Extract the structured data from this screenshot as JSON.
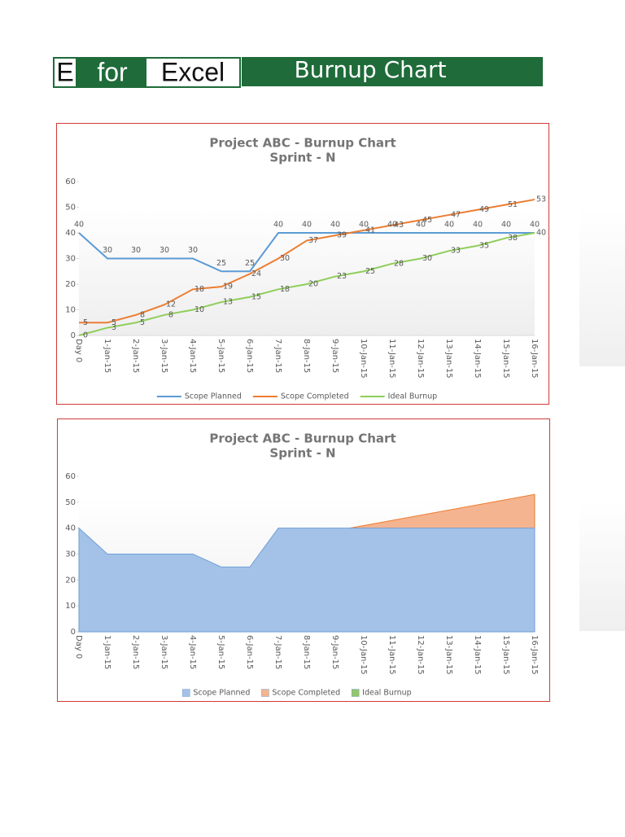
{
  "header": {
    "logo": [
      "E",
      "for",
      "Excel"
    ],
    "title": "Burnup Chart"
  },
  "chart_data": [
    {
      "type": "line",
      "title": "Project ABC - Burnup Chart",
      "subtitle": "Sprint - N",
      "categories": [
        "Day 0",
        "1-Jan-15",
        "2-Jan-15",
        "3-Jan-15",
        "4-Jan-15",
        "5-Jan-15",
        "6-Jan-15",
        "7-Jan-15",
        "8-Jan-15",
        "9-Jan-15",
        "10-Jan-15",
        "11-Jan-15",
        "12-Jan-15",
        "13-Jan-15",
        "14-Jan-15",
        "15-Jan-15",
        "16-Jan-15"
      ],
      "series": [
        {
          "name": "Scope Planned",
          "color": "#5b9bd5",
          "values": [
            40,
            30,
            30,
            30,
            30,
            25,
            25,
            40,
            40,
            40,
            40,
            40,
            40,
            40,
            40,
            40,
            40
          ]
        },
        {
          "name": "Scope Completed",
          "color": "#ed7d31",
          "values": [
            5,
            5,
            8,
            12,
            18,
            19,
            24,
            30,
            37,
            39,
            41,
            43,
            45,
            47,
            49,
            51,
            53
          ]
        },
        {
          "name": "Ideal Burnup",
          "color": "#8fce5a",
          "values": [
            0,
            3,
            5,
            8,
            10,
            13,
            15,
            18,
            20,
            23,
            25,
            28,
            30,
            33,
            35,
            38,
            40
          ]
        }
      ],
      "ylim": [
        0,
        60
      ],
      "yticks": [
        0,
        10,
        20,
        30,
        40,
        50,
        60
      ],
      "data_labels": true,
      "legend": "bottom"
    },
    {
      "type": "area",
      "title": "Project ABC - Burnup Chart",
      "subtitle": "Sprint - N",
      "categories": [
        "Day 0",
        "1-Jan-15",
        "2-Jan-15",
        "3-Jan-15",
        "4-Jan-15",
        "5-Jan-15",
        "6-Jan-15",
        "7-Jan-15",
        "8-Jan-15",
        "9-Jan-15",
        "10-Jan-15",
        "11-Jan-15",
        "12-Jan-15",
        "13-Jan-15",
        "14-Jan-15",
        "15-Jan-15",
        "16-Jan-15"
      ],
      "series": [
        {
          "name": "Scope Planned",
          "color": "#a4c2e8",
          "values": [
            40,
            30,
            30,
            30,
            30,
            25,
            25,
            40,
            40,
            40,
            40,
            40,
            40,
            40,
            40,
            40,
            40
          ]
        },
        {
          "name": "Scope Completed",
          "color": "#f4b48f",
          "values": [
            5,
            5,
            8,
            12,
            18,
            19,
            24,
            30,
            37,
            39,
            41,
            43,
            45,
            47,
            49,
            51,
            53
          ]
        },
        {
          "name": "Ideal Burnup",
          "color": "#92c66a",
          "values": [
            0,
            3,
            5,
            8,
            10,
            13,
            15,
            18,
            20,
            23,
            25,
            28,
            30,
            33,
            35,
            38,
            40
          ]
        }
      ],
      "ylim": [
        0,
        60
      ],
      "yticks": [
        0,
        10,
        20,
        30,
        40,
        50,
        60
      ],
      "data_labels": false,
      "legend": "bottom"
    }
  ]
}
